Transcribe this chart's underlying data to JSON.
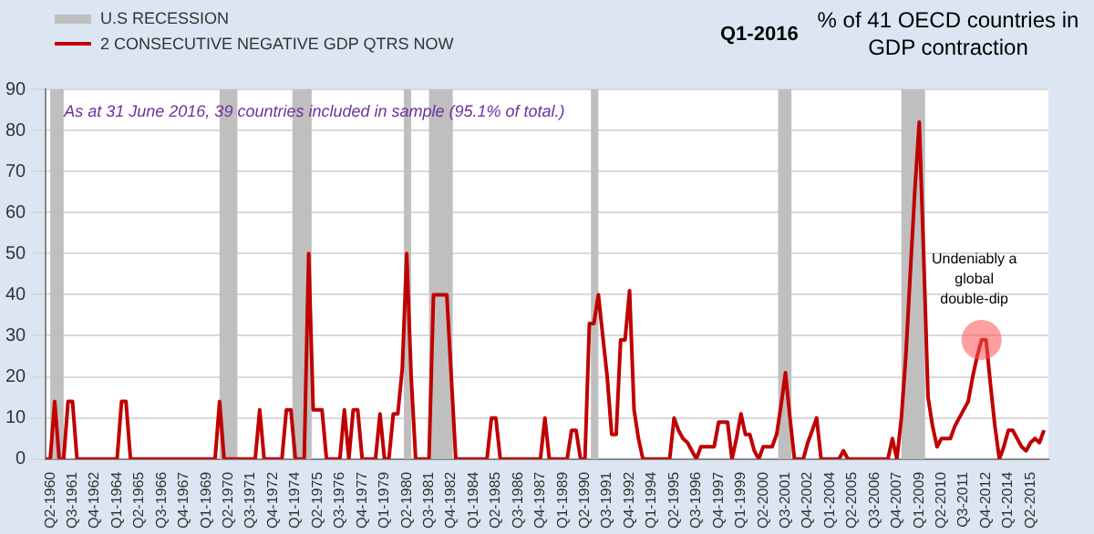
{
  "chart_data": {
    "type": "line",
    "title": "% of 41 OECD countries in GDP contraction",
    "subtitle": "Q1-2016",
    "annotations": [
      "As at 31 June 2016, 39 countries included in sample (95.1% of total.)",
      {
        "text": "Undeniably a global double-dip",
        "x": "2012-07",
        "y": 29
      }
    ],
    "x": [
      "1960-01",
      "1960-04",
      "1960-07",
      "1960-10",
      "1961-01",
      "1961-04",
      "1961-07",
      "1961-10",
      "1962-01",
      "1962-04",
      "1962-07",
      "1962-10",
      "1963-01",
      "1963-04",
      "1963-07",
      "1963-10",
      "1964-01",
      "1964-04",
      "1964-07",
      "1964-10",
      "1965-01",
      "1965-04",
      "1965-07",
      "1965-10",
      "1966-01",
      "1966-04",
      "1966-07",
      "1966-10",
      "1967-01",
      "1967-04",
      "1967-07",
      "1967-10",
      "1968-01",
      "1968-04",
      "1968-07",
      "1968-10",
      "1969-01",
      "1969-04",
      "1969-07",
      "1969-10",
      "1970-01",
      "1970-04",
      "1970-07",
      "1970-10",
      "1971-01",
      "1971-04",
      "1971-07",
      "1971-10",
      "1972-01",
      "1972-04",
      "1972-07",
      "1972-10",
      "1973-01",
      "1973-04",
      "1973-07",
      "1973-10",
      "1974-01",
      "1974-04",
      "1974-07",
      "1974-10",
      "1975-01",
      "1975-04",
      "1975-07",
      "1975-10",
      "1976-01",
      "1976-04",
      "1976-07",
      "1976-10",
      "1977-01",
      "1977-04",
      "1977-07",
      "1977-10",
      "1978-01",
      "1978-04",
      "1978-07",
      "1978-10",
      "1979-01",
      "1979-04",
      "1979-07",
      "1979-10",
      "1980-01",
      "1980-04",
      "1980-07",
      "1980-10",
      "1981-01",
      "1981-04",
      "1981-07",
      "1981-10",
      "1982-01",
      "1982-04",
      "1982-07",
      "1982-10",
      "1983-01",
      "1983-04",
      "1983-07",
      "1983-10",
      "1984-01",
      "1984-04",
      "1984-07",
      "1984-10",
      "1985-01",
      "1985-04",
      "1985-07",
      "1985-10",
      "1986-01",
      "1986-04",
      "1986-07",
      "1986-10",
      "1987-01",
      "1987-04",
      "1987-07",
      "1987-10",
      "1988-01",
      "1988-04",
      "1988-07",
      "1988-10",
      "1989-01",
      "1989-04",
      "1989-07",
      "1989-10",
      "1990-01",
      "1990-04",
      "1990-07",
      "1990-10",
      "1991-01",
      "1991-04",
      "1991-07",
      "1991-10",
      "1992-01",
      "1992-04",
      "1992-07",
      "1992-10",
      "1993-01",
      "1993-04",
      "1993-07",
      "1993-10",
      "1994-01",
      "1994-04",
      "1994-07",
      "1994-10",
      "1995-01",
      "1995-04",
      "1995-07",
      "1995-10",
      "1996-01",
      "1996-04",
      "1996-07",
      "1996-10",
      "1997-01",
      "1997-04",
      "1997-07",
      "1997-10",
      "1998-01",
      "1998-04",
      "1998-07",
      "1998-10",
      "1999-01",
      "1999-04",
      "1999-07",
      "1999-10",
      "2000-01",
      "2000-04",
      "2000-07",
      "2000-10",
      "2001-01",
      "2001-04",
      "2001-07",
      "2001-10",
      "2002-01",
      "2002-04",
      "2002-07",
      "2002-10",
      "2003-01",
      "2003-04",
      "2003-07",
      "2003-10",
      "2004-01",
      "2004-04",
      "2004-07",
      "2004-10",
      "2005-01",
      "2005-04",
      "2005-07",
      "2005-10",
      "2006-01",
      "2006-04",
      "2006-07",
      "2006-10",
      "2007-01",
      "2007-04",
      "2007-07",
      "2007-10",
      "2008-01",
      "2008-04",
      "2008-07",
      "2008-10",
      "2009-01",
      "2009-04",
      "2009-07",
      "2009-10",
      "2010-01",
      "2010-04",
      "2010-07",
      "2010-10",
      "2011-01",
      "2011-04",
      "2011-07",
      "2011-10",
      "2012-01",
      "2012-04",
      "2012-07",
      "2012-10",
      "2013-01",
      "2013-04",
      "2013-07",
      "2013-10",
      "2014-01",
      "2014-04",
      "2014-07",
      "2014-10",
      "2015-01",
      "2015-04",
      "2015-07",
      "2015-10",
      "2016-01"
    ],
    "series": [
      {
        "name": "2 CONSECUTIVE NEGATIVE GDP QTRS NOW",
        "color": "#c00000",
        "values": [
          0,
          0,
          14,
          0,
          0,
          14,
          14,
          0,
          0,
          0,
          0,
          0,
          0,
          0,
          0,
          0,
          0,
          14,
          14,
          0,
          0,
          0,
          0,
          0,
          0,
          0,
          0,
          0,
          0,
          0,
          0,
          0,
          0,
          0,
          0,
          0,
          0,
          0,
          0,
          14,
          0,
          0,
          0,
          0,
          0,
          0,
          0,
          0,
          12,
          0,
          0,
          0,
          0,
          0,
          12,
          12,
          0,
          0,
          0,
          50,
          12,
          12,
          12,
          0,
          0,
          0,
          0,
          12,
          0,
          12,
          12,
          0,
          0,
          0,
          0,
          11,
          0,
          0,
          11,
          11,
          22,
          50,
          20,
          0,
          0,
          0,
          0,
          40,
          40,
          40,
          40,
          20,
          0,
          0,
          0,
          0,
          0,
          0,
          0,
          0,
          10,
          10,
          0,
          0,
          0,
          0,
          0,
          0,
          0,
          0,
          0,
          0,
          10,
          0,
          0,
          0,
          0,
          0,
          7,
          7,
          0,
          0,
          33,
          33,
          40,
          30,
          20,
          6,
          6,
          29,
          29,
          41,
          12,
          5,
          0,
          0,
          0,
          0,
          0,
          0,
          0,
          10,
          7,
          5,
          4,
          2,
          0,
          3,
          3,
          3,
          3,
          9,
          9,
          9,
          0,
          5,
          11,
          6,
          6,
          2,
          0,
          3,
          3,
          3,
          6,
          13,
          21,
          10,
          0,
          0,
          0,
          4,
          7,
          10,
          0,
          0,
          0,
          0,
          0,
          2,
          0,
          0,
          0,
          0,
          0,
          0,
          0,
          0,
          0,
          0,
          5,
          0,
          10,
          25,
          45,
          65,
          82,
          50,
          15,
          8,
          3,
          5,
          5,
          5,
          8,
          10,
          12,
          14,
          20,
          25,
          29,
          29,
          18,
          8,
          0,
          3,
          7,
          7,
          5,
          3,
          2,
          4,
          5,
          4,
          7
        ]
      }
    ],
    "bands": [
      {
        "axis": "x",
        "from": "1960-04",
        "to": "1961-01",
        "label": "U.S RECESSION",
        "color": "#bfbfbf"
      },
      {
        "axis": "x",
        "from": "1969-10",
        "to": "1970-10",
        "color": "#bfbfbf"
      },
      {
        "axis": "x",
        "from": "1973-11",
        "to": "1974-12",
        "color": "#bfbfbf"
      },
      {
        "axis": "x",
        "from": "1980-02",
        "to": "1980-07",
        "color": "#bfbfbf"
      },
      {
        "axis": "x",
        "from": "1981-07",
        "to": "1982-11",
        "color": "#bfbfbf"
      },
      {
        "axis": "x",
        "from": "1990-08",
        "to": "1991-01",
        "color": "#bfbfbf"
      },
      {
        "axis": "x",
        "from": "2001-02",
        "to": "2001-11",
        "color": "#bfbfbf"
      },
      {
        "axis": "x",
        "from": "2008-01",
        "to": "2009-05",
        "color": "#bfbfbf"
      }
    ],
    "xlim": [
      "1960-01",
      "2016-04"
    ],
    "xticks": [
      {
        "value": "1960-04",
        "label": "Q2-1960"
      },
      {
        "value": "1961-07",
        "label": "Q3-1961"
      },
      {
        "value": "1962-10",
        "label": "Q4-1962"
      },
      {
        "value": "1964-01",
        "label": "Q1-1964"
      },
      {
        "value": "1965-04",
        "label": "Q2-1965"
      },
      {
        "value": "1966-07",
        "label": "Q3-1966"
      },
      {
        "value": "1967-10",
        "label": "Q4-1967"
      },
      {
        "value": "1969-01",
        "label": "Q1-1969"
      },
      {
        "value": "1970-04",
        "label": "Q2-1970"
      },
      {
        "value": "1971-07",
        "label": "Q3-1971"
      },
      {
        "value": "1972-10",
        "label": "Q4-1972"
      },
      {
        "value": "1974-01",
        "label": "Q1-1974"
      },
      {
        "value": "1975-04",
        "label": "Q2-1975"
      },
      {
        "value": "1976-07",
        "label": "Q3-1976"
      },
      {
        "value": "1977-10",
        "label": "Q4-1977"
      },
      {
        "value": "1979-01",
        "label": "Q1-1979"
      },
      {
        "value": "1980-04",
        "label": "Q2-1980"
      },
      {
        "value": "1981-07",
        "label": "Q3-1981"
      },
      {
        "value": "1982-10",
        "label": "Q4-1982"
      },
      {
        "value": "1984-01",
        "label": "Q1-1984"
      },
      {
        "value": "1985-04",
        "label": "Q2-1985"
      },
      {
        "value": "1986-07",
        "label": "Q3-1986"
      },
      {
        "value": "1987-10",
        "label": "Q4-1987"
      },
      {
        "value": "1989-01",
        "label": "Q1-1989"
      },
      {
        "value": "1990-04",
        "label": "Q2-1990"
      },
      {
        "value": "1991-07",
        "label": "Q3-1991"
      },
      {
        "value": "1992-10",
        "label": "Q4-1992"
      },
      {
        "value": "1994-01",
        "label": "Q1-1994"
      },
      {
        "value": "1995-04",
        "label": "Q2-1995"
      },
      {
        "value": "1996-07",
        "label": "Q3-1996"
      },
      {
        "value": "1997-10",
        "label": "Q4-1997"
      },
      {
        "value": "1999-01",
        "label": "Q1-1999"
      },
      {
        "value": "2000-04",
        "label": "Q2-2000"
      },
      {
        "value": "2001-07",
        "label": "Q3-2001"
      },
      {
        "value": "2002-10",
        "label": "Q4-2002"
      },
      {
        "value": "2004-01",
        "label": "Q1-2004"
      },
      {
        "value": "2005-04",
        "label": "Q2-2005"
      },
      {
        "value": "2006-07",
        "label": "Q3-2006"
      },
      {
        "value": "2007-10",
        "label": "Q4-2007"
      },
      {
        "value": "2009-01",
        "label": "Q1-2009"
      },
      {
        "value": "2010-04",
        "label": "Q2-2010"
      },
      {
        "value": "2011-07",
        "label": "Q3-2011"
      },
      {
        "value": "2012-10",
        "label": "Q4-2012"
      },
      {
        "value": "2014-01",
        "label": "Q1-2014"
      },
      {
        "value": "2015-04",
        "label": "Q2-2015"
      }
    ],
    "ylim": [
      0,
      90
    ],
    "yticks": [
      0,
      10,
      20,
      30,
      40,
      50,
      60,
      70,
      80,
      90
    ],
    "grid": "y",
    "legend": "top left",
    "marker": "none",
    "line_style": "solid"
  }
}
